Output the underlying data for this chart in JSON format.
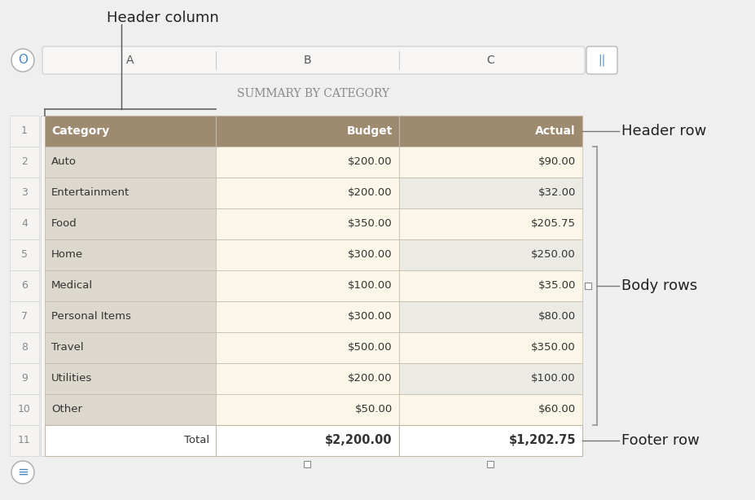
{
  "title": "SUMMARY BY CATEGORY",
  "col_labels": [
    "A",
    "B",
    "C"
  ],
  "header_row": [
    "Category",
    "Budget",
    "Actual"
  ],
  "body_rows": [
    [
      "Auto",
      "$200.00",
      "$90.00"
    ],
    [
      "Entertainment",
      "$200.00",
      "$32.00"
    ],
    [
      "Food",
      "$350.00",
      "$205.75"
    ],
    [
      "Home",
      "$300.00",
      "$250.00"
    ],
    [
      "Medical",
      "$100.00",
      "$35.00"
    ],
    [
      "Personal Items",
      "$300.00",
      "$80.00"
    ],
    [
      "Travel",
      "$500.00",
      "$350.00"
    ],
    [
      "Utilities",
      "$200.00",
      "$100.00"
    ],
    [
      "Other",
      "$50.00",
      "$60.00"
    ]
  ],
  "footer_row": [
    "Total",
    "$2,200.00",
    "$1,202.75"
  ],
  "row_numbers": [
    "1",
    "2",
    "3",
    "4",
    "5",
    "6",
    "7",
    "8",
    "9",
    "10",
    "11"
  ],
  "header_bg": "#9e8a6e",
  "body_col_bg": "#ddd8ce",
  "body_odd_bg": "#faf7e8",
  "body_even_bg": "#eceae5",
  "footer_bg": "#ffffff",
  "col_bar_bg": "#f7f6f4",
  "bg_color": "#f0eff0",
  "text_color_header": "#ffffff",
  "text_color_body": "#333333",
  "text_color_footer": "#333333",
  "border_color": "#c0b8a8",
  "row_bar_color": "#f2f1ef",
  "bracket_color": "#999999",
  "annotation_color": "#222222",
  "button_color": "#4e8abf"
}
